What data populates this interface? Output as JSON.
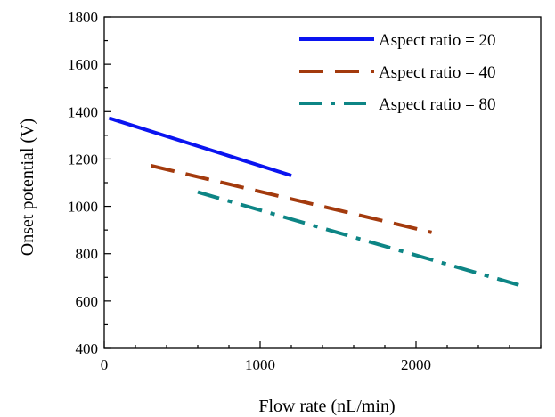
{
  "chart_data": {
    "type": "line",
    "title": "",
    "xlabel": "Flow rate (nL/min)",
    "ylabel": "Onset potential (V)",
    "xlim": [
      0,
      2800
    ],
    "ylim": [
      400,
      1800
    ],
    "xticks": [
      0,
      1000,
      2000
    ],
    "xtick_labels": [
      "0",
      "1000",
      "2000"
    ],
    "yticks": [
      400,
      600,
      800,
      1000,
      1200,
      1400,
      1600,
      1800
    ],
    "ytick_labels": [
      "400",
      "600",
      "800",
      "1000",
      "1200",
      "1400",
      "1600",
      "1800"
    ],
    "grid": false,
    "legend_position": "top-right",
    "series": [
      {
        "name": "Aspect ratio = 20",
        "color": "#0a14f0",
        "line_style": "solid",
        "x": [
          30,
          1200
        ],
        "y": [
          1373,
          1130
        ]
      },
      {
        "name": "Aspect ratio = 40",
        "color": "#a33a0d",
        "line_style": "dashed",
        "x": [
          300,
          2100
        ],
        "y": [
          1172,
          890
        ]
      },
      {
        "name": "Aspect ratio = 80",
        "color": "#0d8585",
        "line_style": "dash-dot",
        "x": [
          600,
          2700
        ],
        "y": [
          1060,
          660
        ]
      }
    ]
  }
}
